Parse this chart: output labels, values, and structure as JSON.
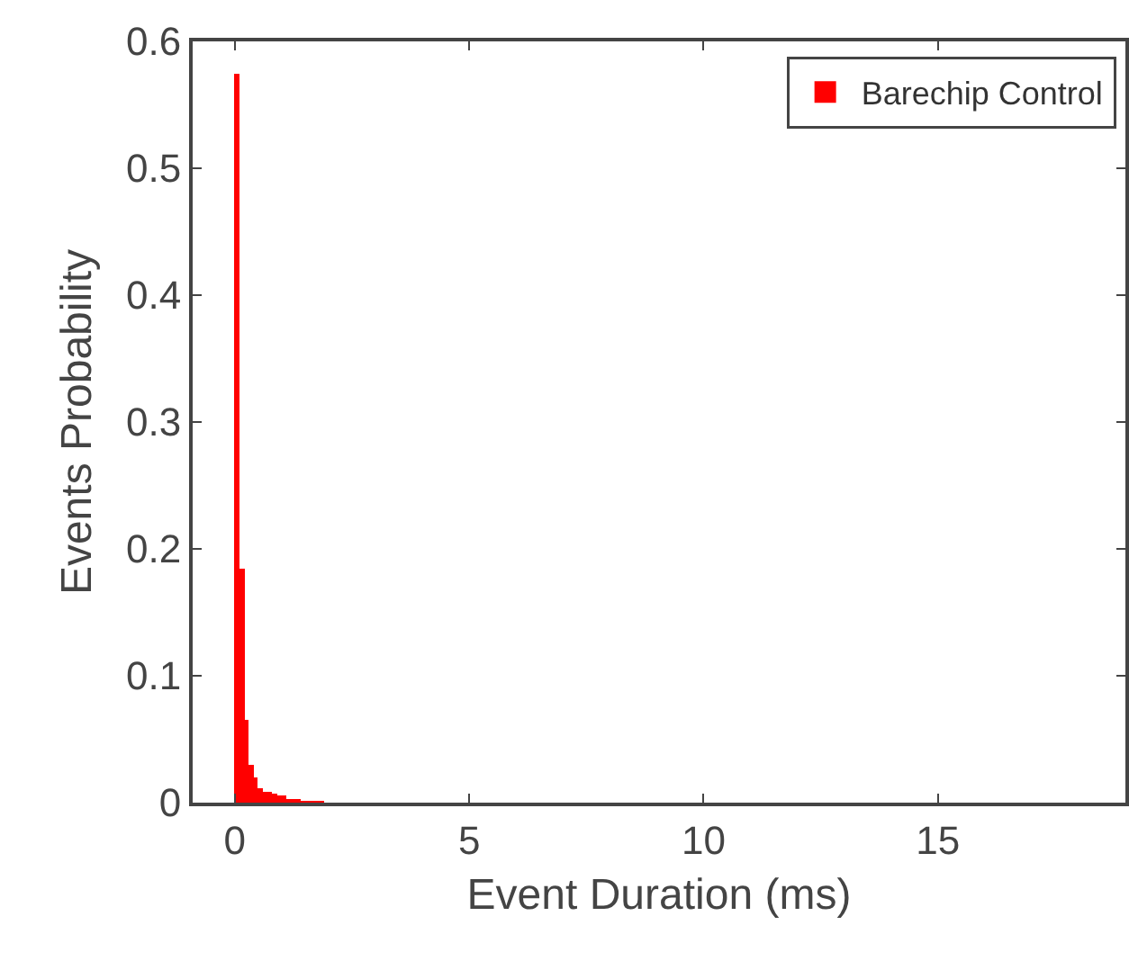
{
  "chart_data": {
    "type": "histogram",
    "xlabel": "Event Duration (ms)",
    "ylabel": "Events Probability",
    "bins": [
      0,
      0.1,
      0.2,
      0.3,
      0.4,
      0.5,
      0.6,
      0.7,
      0.8,
      0.9,
      1.0,
      1.1,
      1.2,
      1.3,
      1.4,
      1.5,
      1.6,
      1.7,
      1.8,
      1.9,
      2.0
    ],
    "series": [
      {
        "name": "Barechip Control",
        "color": "#ff0000",
        "values": [
          0.575,
          0.185,
          0.065,
          0.03,
          0.02,
          0.012,
          0.009,
          0.008,
          0.007,
          0.006,
          0.005,
          0.002,
          0.002,
          0.002,
          0.001,
          0.001,
          0.001,
          0.001,
          0.001,
          0
        ]
      }
    ],
    "xlim": [
      -0.9,
      19
    ],
    "xticks": [
      0,
      5,
      10,
      15
    ],
    "ylim": [
      0,
      0.6
    ],
    "yticks": [
      0,
      0.1,
      0.2,
      0.3,
      0.4,
      0.5,
      0.6
    ],
    "grid": false,
    "legend": "top right"
  }
}
